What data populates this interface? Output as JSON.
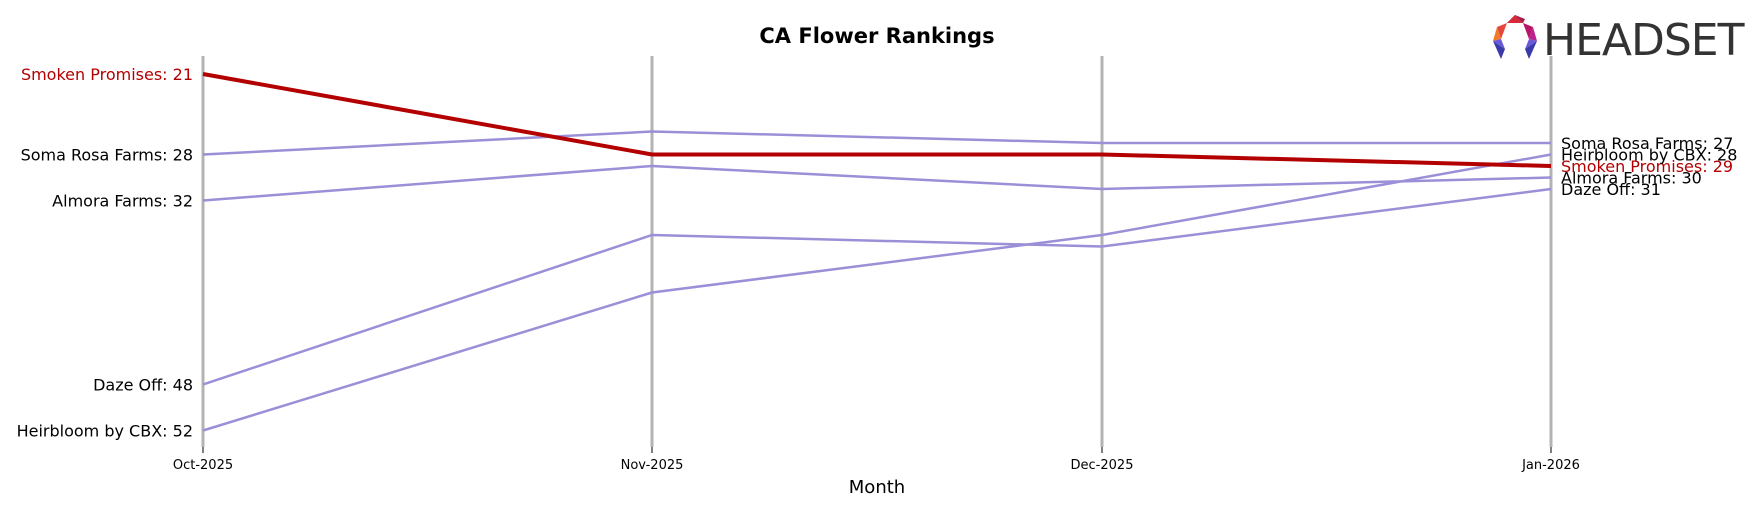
{
  "chart_data": {
    "type": "line",
    "title": "CA Flower Rankings",
    "xlabel": "Month",
    "ylabel": "",
    "categories": [
      "Oct-2025",
      "Nov-2025",
      "Dec-2025",
      "Jan-2026"
    ],
    "y_inverted": true,
    "ylim": [
      21,
      52
    ],
    "grid": "vertical lines at each month",
    "legend": "inline labels at first and last points",
    "highlight_color": "#b30000",
    "series_color": "#9b8fd8",
    "series": [
      {
        "name": "Smoken Promises",
        "values": [
          21,
          28,
          28,
          29
        ],
        "highlight": true
      },
      {
        "name": "Soma Rosa Farms",
        "values": [
          28,
          26,
          27,
          27
        ],
        "highlight": false
      },
      {
        "name": "Almora Farms",
        "values": [
          32,
          29,
          31,
          30
        ],
        "highlight": false
      },
      {
        "name": "Daze Off",
        "values": [
          48,
          35,
          36,
          31
        ],
        "highlight": false
      },
      {
        "name": "Heirbloom by CBX",
        "values": [
          52,
          40,
          35,
          28
        ],
        "highlight": false
      }
    ]
  },
  "logo": {
    "text": "HEADSET"
  }
}
